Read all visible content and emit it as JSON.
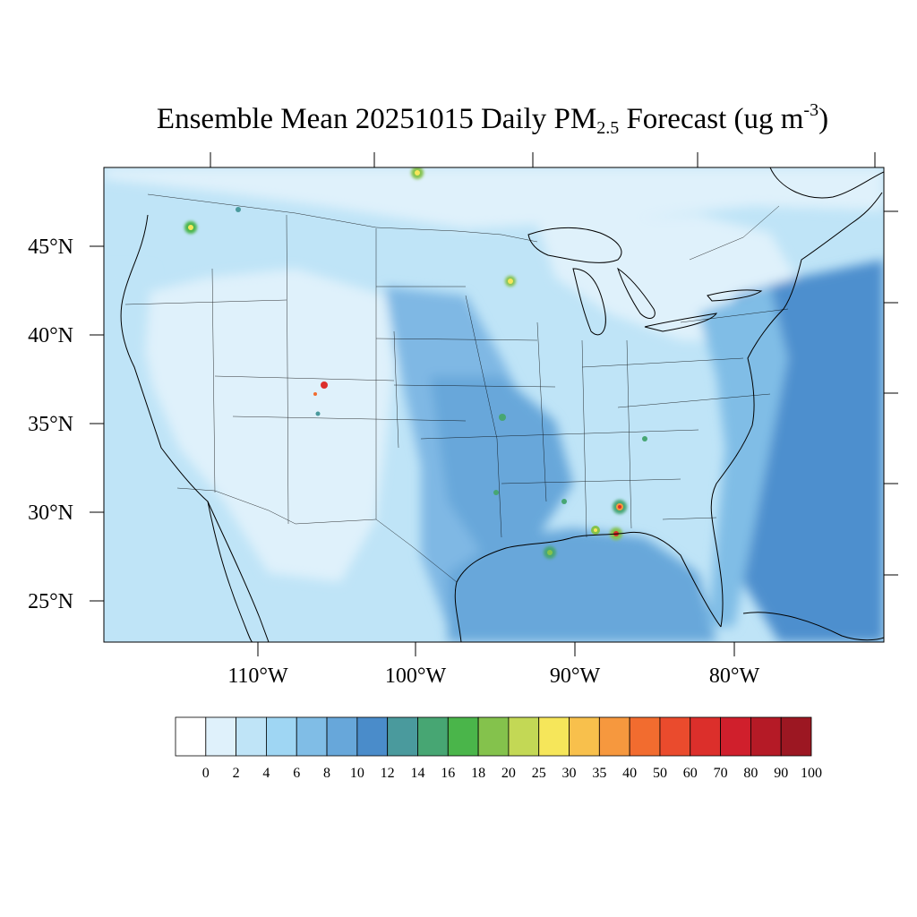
{
  "title": {
    "main": "Ensemble Mean 20251015 Daily PM",
    "subscript": "2.5",
    "rest": " Forecast (ug m",
    "superscript": "-3",
    "close": ")"
  },
  "map": {
    "lat_labels": [
      "45°N",
      "40°N",
      "35°N",
      "30°N",
      "25°N"
    ],
    "lon_labels": [
      "110°W",
      "100°W",
      "90°W",
      "80°W"
    ],
    "field_colors": {
      "ocean_atlantic": "#4d8fce",
      "gulf": "#67a7da",
      "plains_band": "#7fb8e4",
      "west_land": "#dff1fb",
      "east_land": "#bfe4f7",
      "north": "#dff1fb"
    }
  },
  "colorbar": {
    "labels": [
      "0",
      "2",
      "4",
      "6",
      "8",
      "10",
      "12",
      "14",
      "16",
      "18",
      "20",
      "25",
      "30",
      "35",
      "40",
      "50",
      "60",
      "70",
      "80",
      "90",
      "100"
    ],
    "colors": [
      "#ffffff",
      "#dff1fb",
      "#bfe4f7",
      "#9fd6f3",
      "#80bde6",
      "#67a7da",
      "#4a8cca",
      "#4a9a9d",
      "#47a673",
      "#4ab54a",
      "#84c24c",
      "#c3d855",
      "#f6e65a",
      "#f8c04c",
      "#f6983e",
      "#f26c2f",
      "#ea4b2d",
      "#dc2f2b",
      "#d01f2c",
      "#b51a26",
      "#9c1722"
    ]
  }
}
